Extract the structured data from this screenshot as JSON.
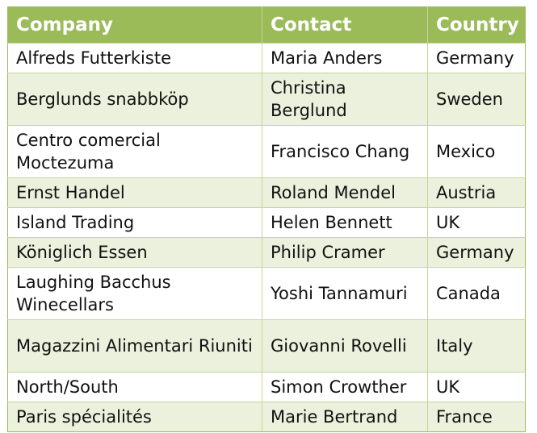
{
  "table": {
    "headers": [
      "Company",
      "Contact",
      "Country"
    ],
    "rows": [
      {
        "company": "Alfreds Futterkiste",
        "contact": "Maria Anders",
        "country": "Germany"
      },
      {
        "company": "Berglunds snabbköp",
        "contact": "Christina Berglund",
        "country": "Sweden"
      },
      {
        "company": "Centro comercial Moctezuma",
        "contact": "Francisco Chang",
        "country": "Mexico"
      },
      {
        "company": "Ernst Handel",
        "contact": "Roland Mendel",
        "country": "Austria"
      },
      {
        "company": "Island Trading",
        "contact": "Helen Bennett",
        "country": "UK"
      },
      {
        "company": "Königlich Essen",
        "contact": "Philip Cramer",
        "country": "Germany"
      },
      {
        "company": "Laughing Bacchus Winecellars",
        "contact": "Yoshi Tannamuri",
        "country": "Canada"
      },
      {
        "company": "Magazzini Alimentari Riuniti",
        "contact": "Giovanni Rovelli",
        "country": "Italy"
      },
      {
        "company": "North/South",
        "contact": "Simon Crowther",
        "country": "UK"
      },
      {
        "company": "Paris spécialités",
        "contact": "Marie Bertrand",
        "country": "France"
      }
    ]
  },
  "colors": {
    "header_background": "#9bbb59",
    "header_text": "#ffffff",
    "band_background": "#ebf1dd",
    "border": "#c3d69b"
  }
}
